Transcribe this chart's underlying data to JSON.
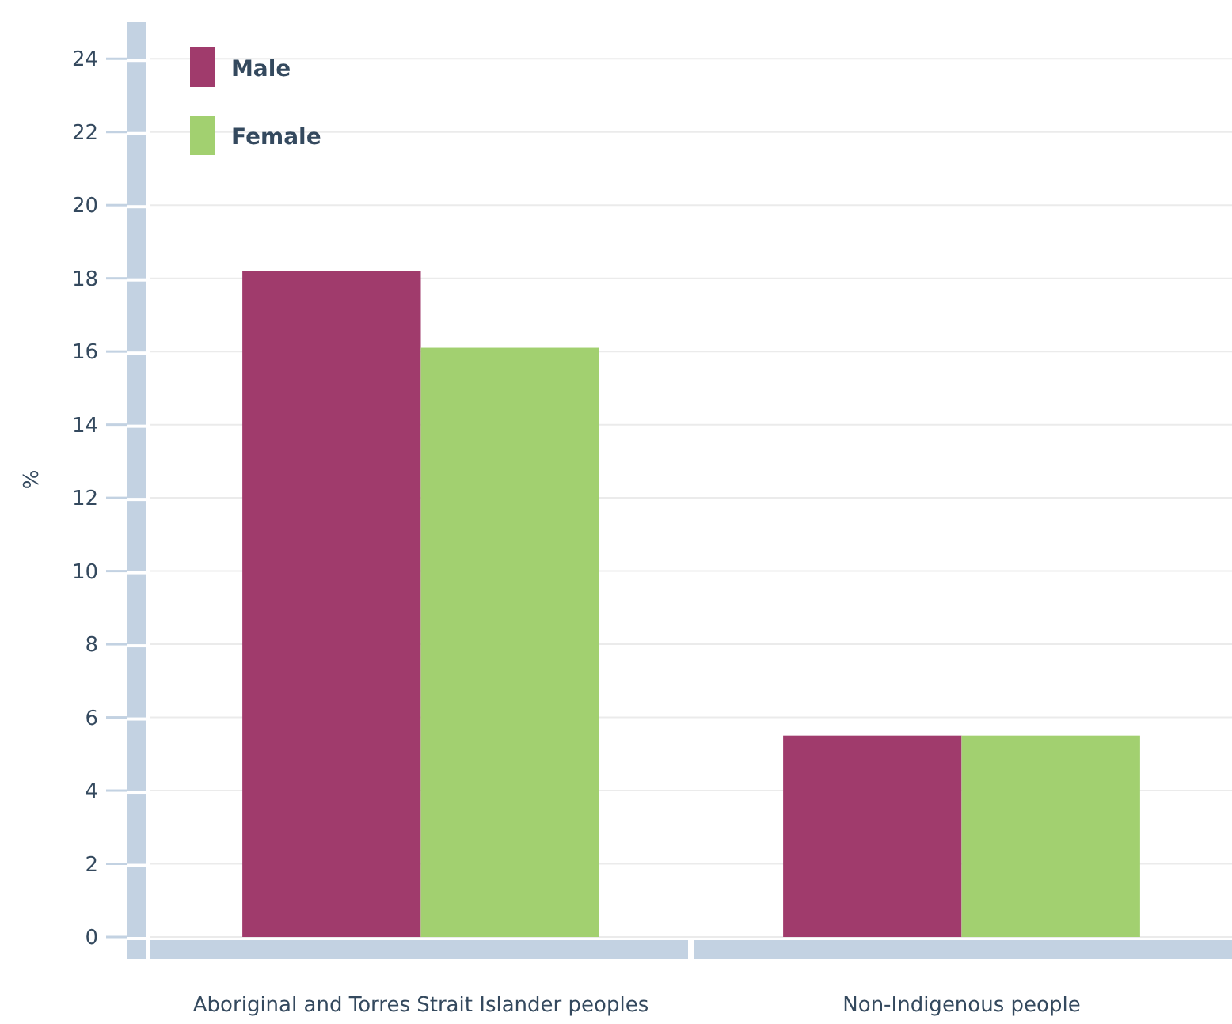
{
  "chart_data": {
    "type": "bar",
    "ylabel": "%",
    "categories": [
      "Aboriginal and Torres Strait Islander peoples",
      "Non-Indigenous people"
    ],
    "series": [
      {
        "name": "Male",
        "color": "#a03b6c",
        "values": [
          18.2,
          5.5
        ]
      },
      {
        "name": "Female",
        "color": "#a2d070",
        "values": [
          16.1,
          5.5
        ]
      }
    ],
    "ylim": [
      0,
      25
    ],
    "yticks": [
      0,
      2,
      4,
      6,
      8,
      10,
      12,
      14,
      16,
      18,
      20,
      22,
      24
    ],
    "grid": "y",
    "legend": "top left"
  }
}
